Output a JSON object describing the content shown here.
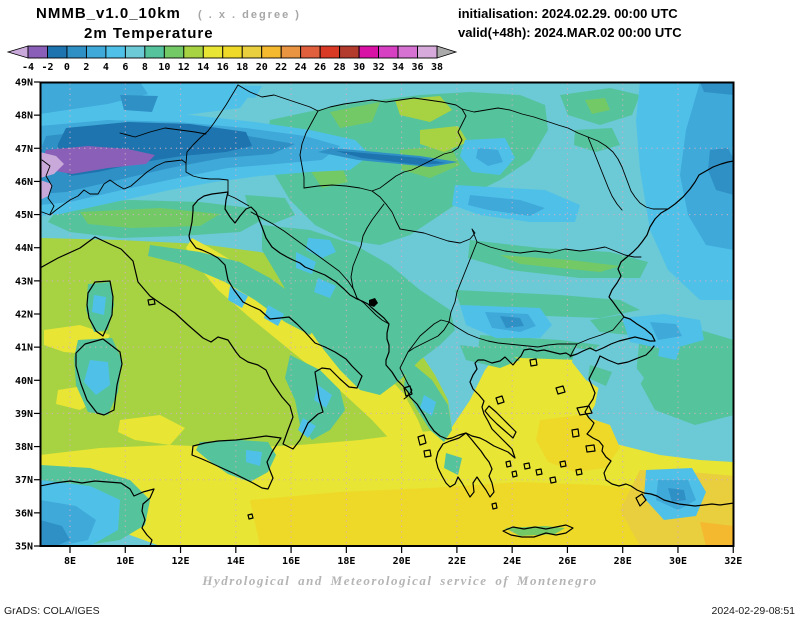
{
  "header": {
    "model_title": "NMMB_v1.0_10km",
    "model_subtitle": "( . x . degree )",
    "variable_title": "2m Temperature",
    "init_line": "initialisation: 2024.02.29. 00:00 UTC",
    "valid_line": "valid(+48h): 2024.MAR.02 00:00 UTC"
  },
  "colorbar": {
    "units": "degree",
    "tick_labels": [
      "-4",
      "-2",
      "0",
      "2",
      "4",
      "6",
      "8",
      "10",
      "12",
      "14",
      "16",
      "18",
      "20",
      "22",
      "24",
      "26",
      "28",
      "30",
      "32",
      "34",
      "36",
      "38"
    ],
    "cell_colors": [
      "#8a5fb8",
      "#1d74ae",
      "#2f90c6",
      "#3fa9d9",
      "#4fc1e9",
      "#6cc9d6",
      "#55c39c",
      "#74c967",
      "#a7d342",
      "#e8e534",
      "#eed928",
      "#e9ce3e",
      "#f4b92f",
      "#e89440",
      "#e0603d",
      "#d93a26",
      "#b23b2e",
      "#d911a4",
      "#d840c4",
      "#d673d2",
      "#d6aadb"
    ],
    "under_arrow_color": "#c9a9da",
    "over_arrow_color": "#a9a9a9"
  },
  "map": {
    "lat_labels": [
      "49N",
      "48N",
      "47N",
      "46N",
      "45N",
      "44N",
      "43N",
      "42N",
      "41N",
      "40N",
      "39N",
      "38N",
      "37N",
      "36N",
      "35N"
    ],
    "lon_labels": [
      "8E",
      "10E",
      "12E",
      "14E",
      "16E",
      "18E",
      "20E",
      "22E",
      "24E",
      "26E",
      "28E",
      "30E",
      "32E"
    ],
    "frame_color": "#000000",
    "grid_color": "#d4aec4",
    "base_color": "#6cc9d6"
  },
  "footer": {
    "attribution": "Hydrological and Meteorological service of Montenegro",
    "credit": "GrADS: COLA/IGES",
    "timestamp": "2024-02-29-08:51"
  }
}
